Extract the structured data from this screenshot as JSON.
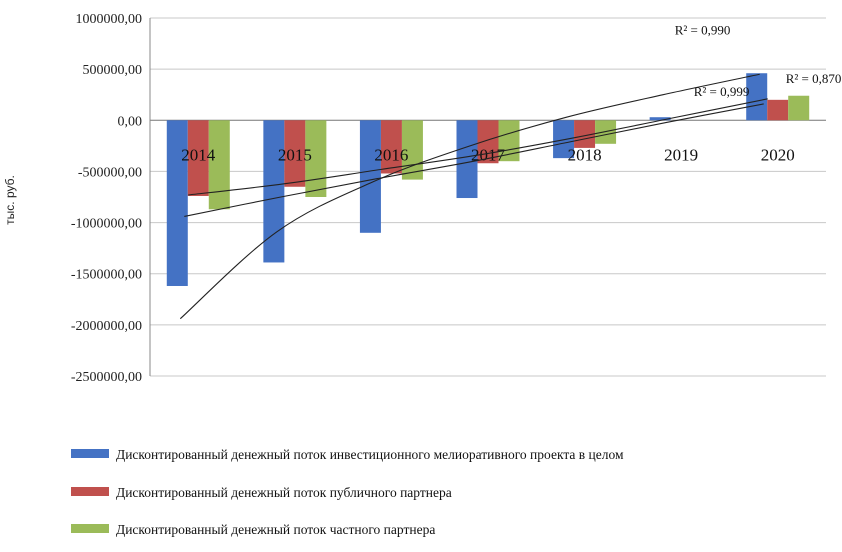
{
  "chart_data": {
    "type": "bar",
    "title": "",
    "xlabel": "",
    "ylabel": "тыс. руб.",
    "ylim": [
      -2500000,
      1000000
    ],
    "yticks": [
      1000000,
      500000,
      0,
      -500000,
      -1000000,
      -1500000,
      -2000000,
      -2500000
    ],
    "ytick_labels": [
      "1000000,00",
      "500000,00",
      "0,00",
      "-500000,00",
      "-1000000,00",
      "-1500000,00",
      "-2000000,00",
      "-2500000,00"
    ],
    "categories": [
      "2014",
      "2015",
      "2016",
      "2017",
      "2018",
      "2019",
      "2020"
    ],
    "series": [
      {
        "name": "Дисконтированный денежный поток инвестиционного мелиоративного проекта в целом",
        "color": "#4472C4",
        "values": [
          -1620000,
          -1390000,
          -1100000,
          -760000,
          -370000,
          30000,
          460000
        ]
      },
      {
        "name": "Дисконтированный денежный поток публичного партнера",
        "color": "#C0504D",
        "values": [
          -740000,
          -650000,
          -520000,
          -420000,
          -270000,
          0,
          200000
        ]
      },
      {
        "name": "Дисконтированный денежный поток частного партнера",
        "color": "#9BBB59",
        "values": [
          -870000,
          -750000,
          -580000,
          -400000,
          -230000,
          0,
          240000
        ]
      }
    ],
    "trendlines": [
      {
        "kind": "logarithmic",
        "r2_label": "R² = 0,990",
        "values": [
          -1940000,
          -1090000,
          -600000,
          -250000,
          30000,
          250000,
          450000
        ]
      },
      {
        "kind": "linear",
        "r2_label": "R² = 0,999",
        "values": [
          -940000,
          -750000,
          -570000,
          -400000,
          -210000,
          -20000,
          160000
        ]
      },
      {
        "kind": "linear",
        "r2_label": "R² = 0,870",
        "values": [
          -730000,
          -620000,
          -480000,
          -340000,
          -170000,
          20000,
          210000
        ]
      }
    ],
    "grid": true,
    "legend": "bottom"
  }
}
